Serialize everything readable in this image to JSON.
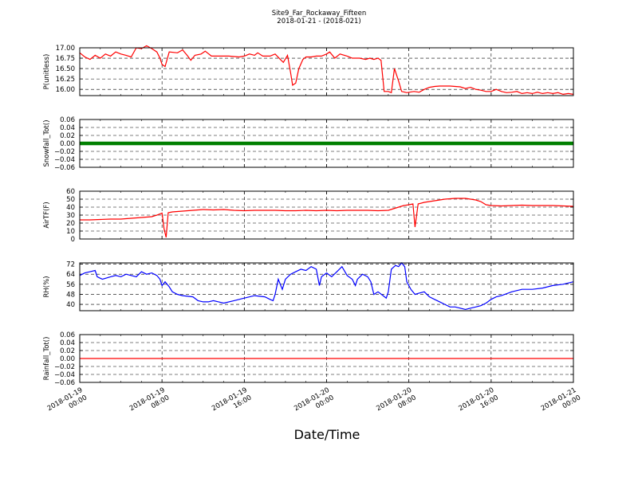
{
  "chart_data": {
    "type": "line",
    "title": "Site9_Far_Rockaway_Fifteen",
    "subtitle": "2018-01-21 - (2018-021)",
    "xlabel": "Date/Time",
    "x_range": [
      "2018-01-19 00:00",
      "2018-01-21 00:00"
    ],
    "x_ticks": [
      {
        "l1": "2018-01-19",
        "l2": "00:00",
        "h": 0
      },
      {
        "l1": "2018-01-19",
        "l2": "08:00",
        "h": 8
      },
      {
        "l1": "2018-01-19",
        "l2": "16:00",
        "h": 16
      },
      {
        "l1": "2018-01-20",
        "l2": "00:00",
        "h": 24
      },
      {
        "l1": "2018-01-20",
        "l2": "08:00",
        "h": 32
      },
      {
        "l1": "2018-01-20",
        "l2": "16:00",
        "h": 40
      },
      {
        "l1": "2018-01-21",
        "l2": "00:00",
        "h": 48
      }
    ],
    "grid": true,
    "panels": [
      {
        "ylabel": "P(unitless)",
        "color": "#ff0000",
        "ylim": [
          15.85,
          17.0
        ],
        "yticks": [
          "17.00",
          "16.75",
          "16.50",
          "16.25",
          "16.00"
        ],
        "ytick_values": [
          17.0,
          16.75,
          16.5,
          16.25,
          16.0
        ],
        "points": [
          [
            0,
            16.88
          ],
          [
            0.5,
            16.78
          ],
          [
            1,
            16.72
          ],
          [
            1.5,
            16.82
          ],
          [
            2,
            16.75
          ],
          [
            2.5,
            16.85
          ],
          [
            3,
            16.8
          ],
          [
            3.5,
            16.9
          ],
          [
            4,
            16.85
          ],
          [
            4.5,
            16.82
          ],
          [
            5,
            16.78
          ],
          [
            5.5,
            17.0
          ],
          [
            6,
            16.98
          ],
          [
            6.5,
            17.05
          ],
          [
            7,
            16.98
          ],
          [
            7.5,
            16.9
          ],
          [
            7.8,
            16.75
          ],
          [
            8,
            16.6
          ],
          [
            8.3,
            16.55
          ],
          [
            8.7,
            16.9
          ],
          [
            9.5,
            16.88
          ],
          [
            10,
            16.95
          ],
          [
            10.5,
            16.8
          ],
          [
            10.8,
            16.7
          ],
          [
            11.2,
            16.82
          ],
          [
            11.8,
            16.85
          ],
          [
            12.2,
            16.92
          ],
          [
            12.8,
            16.8
          ],
          [
            13.5,
            16.8
          ],
          [
            14.5,
            16.8
          ],
          [
            15.5,
            16.78
          ],
          [
            16,
            16.8
          ],
          [
            16.5,
            16.85
          ],
          [
            17,
            16.82
          ],
          [
            17.3,
            16.88
          ],
          [
            17.8,
            16.8
          ],
          [
            18.5,
            16.8
          ],
          [
            19,
            16.85
          ],
          [
            19.5,
            16.72
          ],
          [
            19.8,
            16.65
          ],
          [
            20.2,
            16.82
          ],
          [
            20.5,
            16.4
          ],
          [
            20.7,
            16.1
          ],
          [
            21,
            16.15
          ],
          [
            21.3,
            16.5
          ],
          [
            21.7,
            16.72
          ],
          [
            22,
            16.78
          ],
          [
            22.5,
            16.78
          ],
          [
            23,
            16.8
          ],
          [
            23.5,
            16.8
          ],
          [
            24,
            16.85
          ],
          [
            24.3,
            16.9
          ],
          [
            24.8,
            16.75
          ],
          [
            25.3,
            16.85
          ],
          [
            26,
            16.8
          ],
          [
            26.5,
            16.75
          ],
          [
            27.2,
            16.75
          ],
          [
            27.8,
            16.72
          ],
          [
            28.2,
            16.75
          ],
          [
            28.6,
            16.72
          ],
          [
            29,
            16.75
          ],
          [
            29.3,
            16.7
          ],
          [
            29.6,
            15.95
          ],
          [
            30,
            15.95
          ],
          [
            30.3,
            15.92
          ],
          [
            30.6,
            16.5
          ],
          [
            31,
            16.2
          ],
          [
            31.3,
            15.95
          ],
          [
            31.8,
            15.92
          ],
          [
            32.5,
            15.95
          ],
          [
            33,
            15.93
          ],
          [
            33.5,
            16.0
          ],
          [
            34,
            16.05
          ],
          [
            34.5,
            16.07
          ],
          [
            35,
            16.08
          ],
          [
            36,
            16.08
          ],
          [
            37,
            16.06
          ],
          [
            37.5,
            16.02
          ],
          [
            38,
            16.05
          ],
          [
            38.5,
            16.0
          ],
          [
            39,
            15.98
          ],
          [
            39.5,
            15.95
          ],
          [
            40,
            15.95
          ],
          [
            40.5,
            16.0
          ],
          [
            41,
            15.95
          ],
          [
            41.5,
            15.92
          ],
          [
            42,
            15.93
          ],
          [
            42.5,
            15.95
          ],
          [
            43,
            15.9
          ],
          [
            43.5,
            15.92
          ],
          [
            44,
            15.9
          ],
          [
            44.5,
            15.93
          ],
          [
            45,
            15.9
          ],
          [
            45.5,
            15.92
          ],
          [
            46,
            15.9
          ],
          [
            46.5,
            15.92
          ],
          [
            47,
            15.88
          ],
          [
            47.5,
            15.9
          ],
          [
            48,
            15.88
          ]
        ]
      },
      {
        "ylabel": "Snowfall_Tot()",
        "color": "#008000",
        "ylim": [
          -0.06,
          0.06
        ],
        "yticks": [
          "0.06",
          "0.04",
          "0.02",
          "0.00",
          "−0.02",
          "−0.04",
          "−0.06"
        ],
        "ytick_values": [
          0.06,
          0.04,
          0.02,
          0.0,
          -0.02,
          -0.04,
          -0.06
        ],
        "points": [
          [
            0,
            0.0
          ],
          [
            48,
            0.0
          ]
        ]
      },
      {
        "ylabel": "AirTF(F)",
        "color": "#ff0000",
        "ylim": [
          0,
          60
        ],
        "yticks": [
          "60",
          "50",
          "40",
          "30",
          "20",
          "10",
          "0"
        ],
        "ytick_values": [
          60,
          50,
          40,
          30,
          20,
          10,
          0
        ],
        "points": [
          [
            0,
            24
          ],
          [
            1,
            24
          ],
          [
            2,
            24.5
          ],
          [
            3,
            25
          ],
          [
            4,
            25
          ],
          [
            5,
            26
          ],
          [
            6,
            27
          ],
          [
            7,
            28
          ],
          [
            7.5,
            30
          ],
          [
            8,
            32.5
          ],
          [
            8.2,
            13
          ],
          [
            8.4,
            2
          ],
          [
            8.6,
            33
          ],
          [
            9,
            34
          ],
          [
            10,
            35
          ],
          [
            11,
            36
          ],
          [
            12,
            37
          ],
          [
            13,
            36.5
          ],
          [
            14,
            37
          ],
          [
            15,
            36
          ],
          [
            16,
            35.5
          ],
          [
            17,
            36
          ],
          [
            18,
            36
          ],
          [
            19,
            36
          ],
          [
            20,
            35.5
          ],
          [
            21,
            35.5
          ],
          [
            22,
            36
          ],
          [
            23,
            35.5
          ],
          [
            24,
            36
          ],
          [
            25,
            35.5
          ],
          [
            26,
            36
          ],
          [
            27,
            36
          ],
          [
            28,
            36
          ],
          [
            29,
            35.5
          ],
          [
            30,
            36
          ],
          [
            30.5,
            38
          ],
          [
            31,
            40
          ],
          [
            31.5,
            42
          ],
          [
            32,
            43
          ],
          [
            32.4,
            44
          ],
          [
            32.6,
            15
          ],
          [
            32.9,
            44
          ],
          [
            33.5,
            46
          ],
          [
            34.5,
            48
          ],
          [
            35.5,
            50
          ],
          [
            36.5,
            51
          ],
          [
            37.5,
            51
          ],
          [
            38,
            50
          ],
          [
            38.5,
            49
          ],
          [
            39,
            47
          ],
          [
            39.5,
            43
          ],
          [
            40,
            42
          ],
          [
            41,
            41.5
          ],
          [
            42,
            42
          ],
          [
            43,
            42.5
          ],
          [
            44,
            42
          ],
          [
            45,
            42
          ],
          [
            46,
            42
          ],
          [
            47,
            41.5
          ],
          [
            48,
            41
          ]
        ]
      },
      {
        "ylabel": "RH(%)",
        "color": "#0000ff",
        "ylim": [
          35,
          73
        ],
        "yticks": [
          "72",
          "64",
          "56",
          "48",
          "40"
        ],
        "ytick_values": [
          72,
          64,
          56,
          48,
          40
        ],
        "points": [
          [
            0,
            63
          ],
          [
            0.5,
            65
          ],
          [
            1,
            66
          ],
          [
            1.5,
            67
          ],
          [
            1.7,
            62
          ],
          [
            2.2,
            60
          ],
          [
            3,
            62
          ],
          [
            3.5,
            63
          ],
          [
            4,
            62
          ],
          [
            4.5,
            64
          ],
          [
            5,
            63
          ],
          [
            5.5,
            62
          ],
          [
            6,
            66
          ],
          [
            6.5,
            64
          ],
          [
            7,
            65
          ],
          [
            7.5,
            63
          ],
          [
            7.8,
            60
          ],
          [
            8,
            55
          ],
          [
            8.3,
            58
          ],
          [
            8.7,
            54
          ],
          [
            9,
            50
          ],
          [
            9.5,
            48
          ],
          [
            10,
            47
          ],
          [
            11,
            46
          ],
          [
            11.5,
            43
          ],
          [
            12,
            42
          ],
          [
            12.5,
            42
          ],
          [
            13,
            43
          ],
          [
            13.5,
            42
          ],
          [
            14,
            41
          ],
          [
            15,
            43
          ],
          [
            16,
            45
          ],
          [
            17,
            47
          ],
          [
            18,
            46
          ],
          [
            18.5,
            44
          ],
          [
            18.8,
            43
          ],
          [
            19,
            48
          ],
          [
            19.3,
            60
          ],
          [
            19.7,
            52
          ],
          [
            20,
            60
          ],
          [
            20.5,
            64
          ],
          [
            21,
            66
          ],
          [
            21.5,
            68
          ],
          [
            22,
            67
          ],
          [
            22.5,
            70
          ],
          [
            23,
            68
          ],
          [
            23.3,
            55
          ],
          [
            23.5,
            62
          ],
          [
            24,
            65
          ],
          [
            24.5,
            62
          ],
          [
            25,
            66
          ],
          [
            25.5,
            70
          ],
          [
            26,
            63
          ],
          [
            26.5,
            60
          ],
          [
            26.8,
            55
          ],
          [
            27,
            60
          ],
          [
            27.5,
            64
          ],
          [
            28,
            62
          ],
          [
            28.3,
            58
          ],
          [
            28.6,
            48
          ],
          [
            29,
            50
          ],
          [
            29.5,
            47
          ],
          [
            29.8,
            45
          ],
          [
            30,
            50
          ],
          [
            30.3,
            68
          ],
          [
            30.7,
            71
          ],
          [
            31,
            70
          ],
          [
            31.3,
            73
          ],
          [
            31.6,
            70
          ],
          [
            31.8,
            58
          ],
          [
            32.2,
            52
          ],
          [
            32.6,
            48
          ],
          [
            33,
            49
          ],
          [
            33.5,
            50
          ],
          [
            34,
            46
          ],
          [
            34.5,
            44
          ],
          [
            35,
            42
          ],
          [
            35.5,
            40
          ],
          [
            36,
            38
          ],
          [
            36.5,
            38
          ],
          [
            37,
            37
          ],
          [
            37.5,
            36
          ],
          [
            38,
            37
          ],
          [
            38.5,
            38
          ],
          [
            39,
            39
          ],
          [
            39.5,
            41
          ],
          [
            40,
            44
          ],
          [
            40.5,
            46
          ],
          [
            41,
            47
          ],
          [
            42,
            50
          ],
          [
            43,
            52
          ],
          [
            44,
            52
          ],
          [
            45,
            53
          ],
          [
            46,
            55
          ],
          [
            47,
            56
          ],
          [
            48,
            58
          ]
        ]
      },
      {
        "ylabel": "Rainfall_Tot()",
        "color": "#ff0000",
        "ylim": [
          -0.06,
          0.06
        ],
        "yticks": [
          "0.06",
          "0.04",
          "0.02",
          "0.00",
          "−0.02",
          "−0.04",
          "−0.06"
        ],
        "ytick_values": [
          0.06,
          0.04,
          0.02,
          0.0,
          -0.02,
          -0.04,
          -0.06
        ],
        "points": [
          [
            0,
            0.0
          ],
          [
            48,
            0.0
          ]
        ]
      }
    ]
  }
}
